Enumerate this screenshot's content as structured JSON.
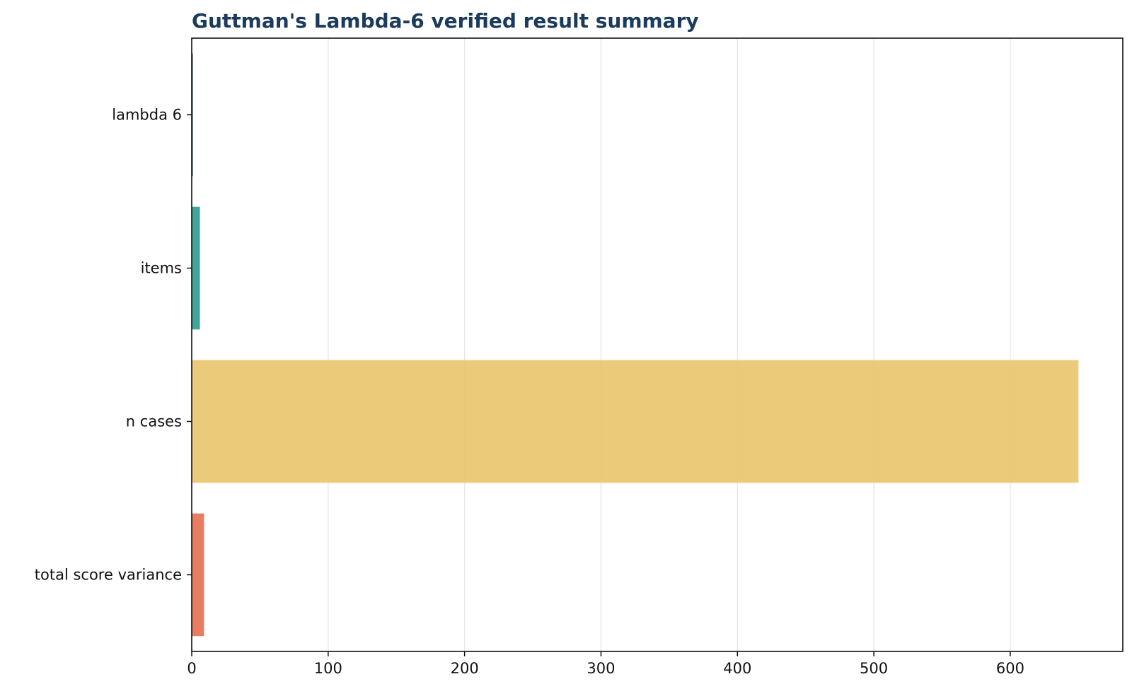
{
  "chart_data": {
    "type": "bar",
    "orientation": "horizontal",
    "title": "Guttman's Lambda-6 verified result summary",
    "xlabel": "",
    "ylabel": "",
    "categories": [
      "lambda 6",
      "items",
      "n cases",
      "total score variance"
    ],
    "values": [
      0.82,
      6,
      650,
      9
    ],
    "colors": [
      "#264653",
      "#2a9d8f",
      "#e9c46a",
      "#e76f51"
    ],
    "xlim": [
      0,
      682.5
    ],
    "xticks": [
      0,
      100,
      200,
      300,
      400,
      500,
      600
    ],
    "grid": "vertical",
    "legend": "none"
  }
}
